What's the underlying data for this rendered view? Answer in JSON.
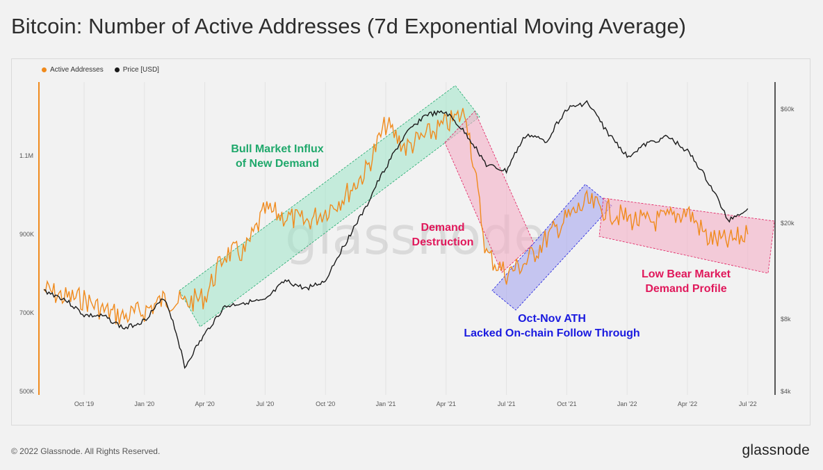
{
  "title": "Bitcoin: Number of Active Addresses (7d Exponential Moving Average)",
  "footer": {
    "copyright": "© 2022 Glassnode. All Rights Reserved.",
    "brand": "glassnode"
  },
  "watermark": "glassnode",
  "colors": {
    "active": "#f08a1c",
    "price": "#1a1a1a",
    "green": "#1fa86b",
    "red": "#e0185b",
    "blue": "#1a1adf",
    "green_fill": "#9fe6c8",
    "red_fill": "#f4afc6",
    "blue_fill": "#a7a7ee"
  },
  "chart_data": {
    "type": "line",
    "title": "Bitcoin: Number of Active Addresses (7d Exponential Moving Average)",
    "x_ticks": [
      "Oct '19",
      "Jan '20",
      "Apr '20",
      "Jul '20",
      "Oct '20",
      "Jan '21",
      "Apr '21",
      "Jul '21",
      "Oct '21",
      "Jan '22",
      "Apr '22",
      "Jul '22"
    ],
    "y_left_ticks": [
      "500K",
      "700K",
      "900K",
      "1.1M"
    ],
    "y_right_ticks": [
      "$4k",
      "$8k",
      "$20k",
      "$60k"
    ],
    "y_right_scale": "log",
    "legend_position": "top-left",
    "series": [
      {
        "name": "Active Addresses",
        "axis": "left",
        "x": [
          "2019-08",
          "2019-09",
          "2019-10",
          "2019-11",
          "2019-12",
          "2020-01",
          "2020-02",
          "2020-03",
          "2020-04",
          "2020-05",
          "2020-06",
          "2020-07",
          "2020-08",
          "2020-09",
          "2020-10",
          "2020-11",
          "2020-12",
          "2021-01",
          "2021-02",
          "2021-03",
          "2021-04",
          "2021-05",
          "2021-06",
          "2021-07",
          "2021-08",
          "2021-09",
          "2021-10",
          "2021-11",
          "2021-12",
          "2022-01",
          "2022-02",
          "2022-03",
          "2022-04",
          "2022-05",
          "2022-06",
          "2022-07"
        ],
        "values": [
          760000,
          740000,
          735000,
          705000,
          690000,
          705000,
          735000,
          725000,
          740000,
          850000,
          855000,
          960000,
          945000,
          930000,
          960000,
          1000000,
          1060000,
          1180000,
          1120000,
          1150000,
          1180000,
          1210000,
          850000,
          800000,
          830000,
          890000,
          940000,
          980000,
          960000,
          940000,
          930000,
          940000,
          960000,
          890000,
          880000,
          900000
        ]
      },
      {
        "name": "Price [USD]",
        "axis": "right",
        "x": [
          "2019-08",
          "2019-09",
          "2019-10",
          "2019-11",
          "2019-12",
          "2020-01",
          "2020-02",
          "2020-03",
          "2020-04",
          "2020-05",
          "2020-06",
          "2020-07",
          "2020-08",
          "2020-09",
          "2020-10",
          "2020-11",
          "2020-12",
          "2021-01",
          "2021-02",
          "2021-03",
          "2021-04",
          "2021-05",
          "2021-06",
          "2021-07",
          "2021-08",
          "2021-09",
          "2021-10",
          "2021-11",
          "2021-12",
          "2022-01",
          "2022-02",
          "2022-03",
          "2022-04",
          "2022-05",
          "2022-06",
          "2022-07"
        ],
        "values": [
          10500,
          9700,
          8300,
          8200,
          7300,
          7900,
          9800,
          5000,
          6900,
          9000,
          9400,
          9500,
          11500,
          10700,
          11500,
          16500,
          23000,
          34000,
          47000,
          57000,
          58000,
          47000,
          35000,
          33000,
          47000,
          44000,
          60000,
          64000,
          48000,
          38000,
          43000,
          46000,
          40000,
          30000,
          20500,
          23000
        ]
      }
    ],
    "annotations": [
      {
        "text": [
          "Bull Market Influx",
          "of New Demand"
        ],
        "color": "green"
      },
      {
        "text": [
          "Demand",
          "Destruction"
        ],
        "color": "red"
      },
      {
        "text": [
          "Oct-Nov ATH",
          "Lacked On-chain Follow Through"
        ],
        "color": "blue"
      },
      {
        "text": [
          "Low Bear Market",
          "Demand Profile"
        ],
        "color": "red"
      }
    ]
  }
}
